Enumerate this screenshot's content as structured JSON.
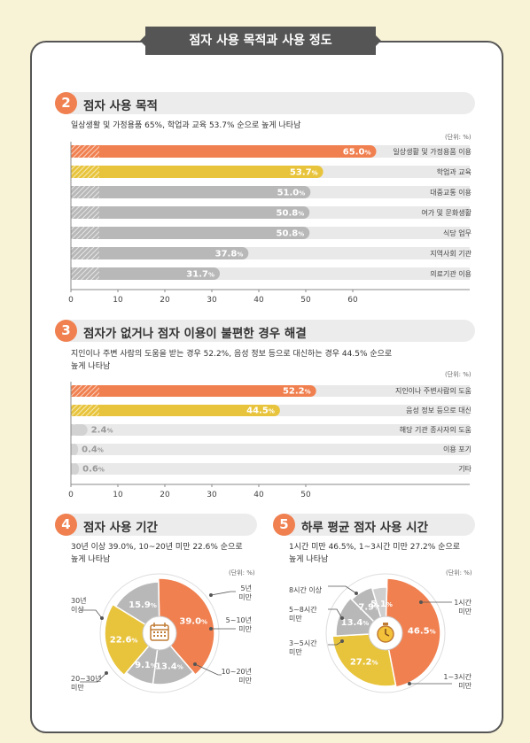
{
  "title": "점자 사용 목적과 사용 정도",
  "sections": {
    "s2": {
      "num": "2",
      "title": "점자 사용 목적",
      "summary": "일상생활 및 가정용품 65%, 학업과 교육 53.7% 순으로 높게 나타남",
      "unit": "(단위: %)"
    },
    "s3": {
      "num": "3",
      "title": "점자가 없거나 점자 이용이 불편한 경우 해결",
      "summary1": "지인이나 주변 사람의 도움을 받는 경우 52.2%, 음성 정보 등으로 대신하는 경우 44.5% 순으로",
      "summary2": "높게 나타남",
      "unit": "(단위: %)"
    },
    "s4": {
      "num": "4",
      "title": "점자 사용 기간",
      "summary1": "30년 이상 39.0%, 10~20년 미만 22.6% 순으로",
      "summary2": "높게 나타남",
      "unit": "(단위: %)",
      "labels": {
        "l30": [
          "30년",
          "이상"
        ],
        "l5": [
          "5년",
          "미만"
        ],
        "l510": [
          "5~10년",
          "미만"
        ],
        "l1020": [
          "10~20년",
          "미만"
        ],
        "l2030": [
          "20~30년",
          "미만"
        ]
      }
    },
    "s5": {
      "num": "5",
      "title": "하루 평균 점자 사용 시간",
      "summary1": "1시간 미만 46.5%, 1~3시간 미만 27.2% 순으로",
      "summary2": "높게 나타남",
      "unit": "(단위: %)",
      "labels": {
        "l8": [
          "8시간 이상"
        ],
        "l58": [
          "5~8시간",
          "미만"
        ],
        "l35": [
          "3~5시간",
          "미만"
        ],
        "l1": [
          "1시간",
          "미만"
        ],
        "l13": [
          "1~3시간",
          "미만"
        ]
      }
    }
  },
  "colors": {
    "orange": "#f08050",
    "yellow": "#e8c43c",
    "gray": "#b8b8b8",
    "track": "#e9e9e9",
    "lightgray": "#d2d2d2"
  },
  "chart_data": [
    {
      "type": "bar",
      "orientation": "horizontal",
      "categories": [
        "일상생활 및 가정용품 이용",
        "학업과 교육",
        "대중교통 이용",
        "여가 및 문화생활",
        "식당 업무",
        "지역사회 기관",
        "의료기관 이용"
      ],
      "values": [
        65.0,
        53.7,
        51.0,
        50.8,
        50.8,
        37.8,
        31.7
      ],
      "value_labels": [
        "65.0",
        "53.7",
        "51.0",
        "50.8",
        "50.8",
        "37.8",
        "31.7"
      ],
      "bar_colors": [
        "orange",
        "yellow",
        "gray",
        "gray",
        "gray",
        "gray",
        "gray"
      ],
      "xticks": [
        "0",
        "10",
        "20",
        "30",
        "40",
        "50",
        "60"
      ],
      "xlim": [
        0,
        70
      ],
      "unit": "%"
    },
    {
      "type": "bar",
      "orientation": "horizontal",
      "categories": [
        "지인이나 주변사람의 도움",
        "음성 정보 등으로 대신",
        "해당 기관 종사자의 도움",
        "이용 포기",
        "기타"
      ],
      "values": [
        52.2,
        44.5,
        2.4,
        0.4,
        0.6
      ],
      "value_labels": [
        "52.2",
        "44.5",
        "2.4",
        "0.4",
        "0.6"
      ],
      "bar_colors": [
        "orange",
        "yellow",
        "gray",
        "gray",
        "gray"
      ],
      "xticks": [
        "0",
        "10",
        "20",
        "30",
        "40",
        "50"
      ],
      "xlim": [
        0,
        70
      ],
      "unit": "%"
    },
    {
      "type": "pie",
      "categories": [
        "30년 이상",
        "5년 미만",
        "5~10년 미만",
        "10~20년 미만",
        "20~30년 미만"
      ],
      "values": [
        39.0,
        13.4,
        9.1,
        22.6,
        15.9
      ],
      "value_labels": [
        "39.0",
        "13.4",
        "9.1",
        "22.6",
        "15.9"
      ]
    },
    {
      "type": "pie",
      "categories": [
        "1시간 미만",
        "1~3시간 미만",
        "3~5시간 미만",
        "5~8시간 미만",
        "8시간 이상"
      ],
      "values": [
        46.5,
        27.2,
        13.4,
        7.9,
        5.1
      ],
      "value_labels": [
        "46.5",
        "27.2",
        "13.4",
        "7.9",
        "5.1"
      ]
    }
  ]
}
